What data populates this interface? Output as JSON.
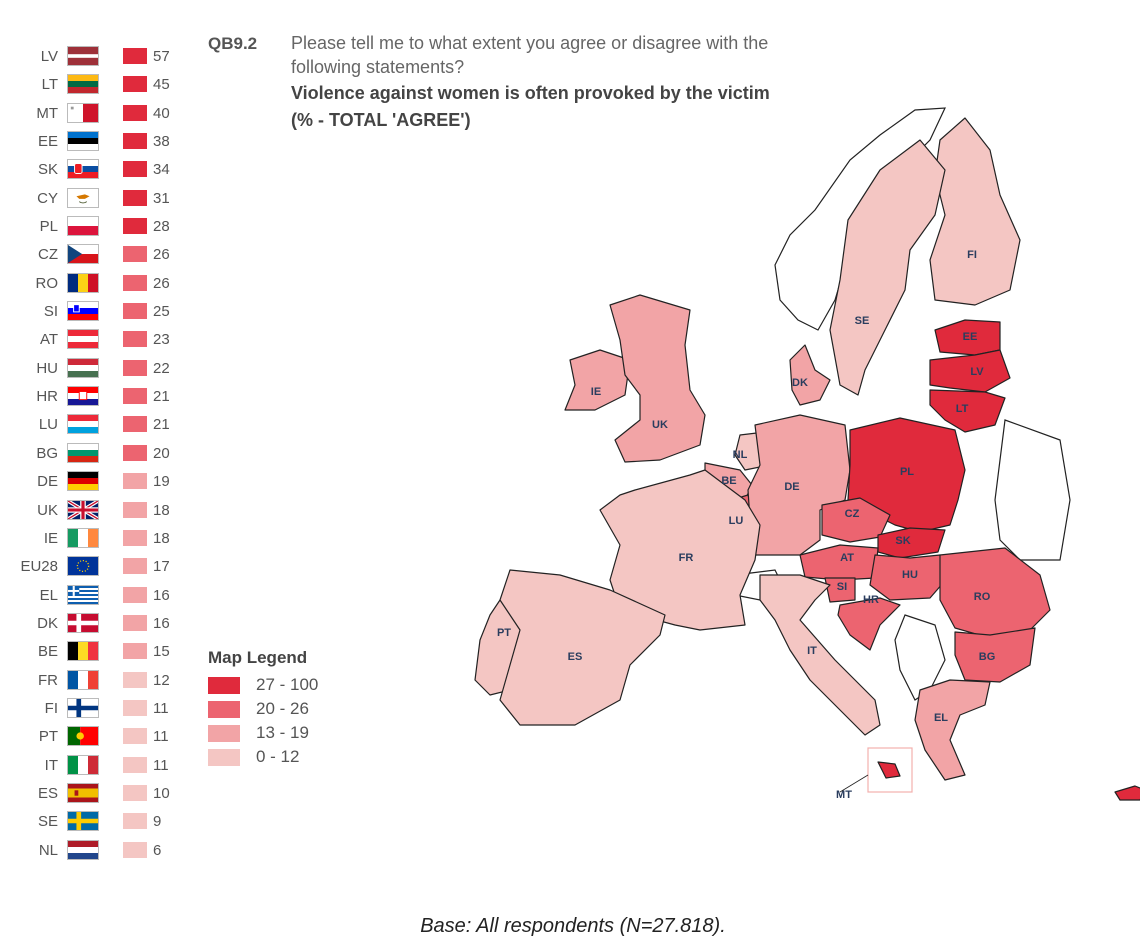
{
  "header": {
    "question_code": "QB9.2",
    "question_line1": "Please tell me to what extent you agree or disagree with the",
    "question_line2": "following statements?",
    "statement": "Violence against women is often provoked by the victim",
    "measure": "(% - TOTAL 'AGREE')"
  },
  "colors": {
    "band_27_100": "#e02a3c",
    "band_20_26": "#ec6470",
    "band_13_19": "#f2a4a6",
    "band_0_12": "#f4c6c3"
  },
  "ranking": [
    {
      "code": "LV",
      "value": "57",
      "flag": "latvia-flag",
      "color": "#e02a3c"
    },
    {
      "code": "LT",
      "value": "45",
      "flag": "lithuania-flag",
      "color": "#e02a3c"
    },
    {
      "code": "MT",
      "value": "40",
      "flag": "malta-flag",
      "color": "#e02a3c"
    },
    {
      "code": "EE",
      "value": "38",
      "flag": "estonia-flag",
      "color": "#e02a3c"
    },
    {
      "code": "SK",
      "value": "34",
      "flag": "slovakia-flag",
      "color": "#e02a3c"
    },
    {
      "code": "CY",
      "value": "31",
      "flag": "cyprus-flag",
      "color": "#e02a3c"
    },
    {
      "code": "PL",
      "value": "28",
      "flag": "poland-flag",
      "color": "#e02a3c"
    },
    {
      "code": "CZ",
      "value": "26",
      "flag": "czechia-flag",
      "color": "#ec6470"
    },
    {
      "code": "RO",
      "value": "26",
      "flag": "romania-flag",
      "color": "#ec6470"
    },
    {
      "code": "SI",
      "value": "25",
      "flag": "slovenia-flag",
      "color": "#ec6470"
    },
    {
      "code": "AT",
      "value": "23",
      "flag": "austria-flag",
      "color": "#ec6470"
    },
    {
      "code": "HU",
      "value": "22",
      "flag": "hungary-flag",
      "color": "#ec6470"
    },
    {
      "code": "HR",
      "value": "21",
      "flag": "croatia-flag",
      "color": "#ec6470"
    },
    {
      "code": "LU",
      "value": "21",
      "flag": "luxembourg-flag",
      "color": "#ec6470"
    },
    {
      "code": "BG",
      "value": "20",
      "flag": "bulgaria-flag",
      "color": "#ec6470"
    },
    {
      "code": "DE",
      "value": "19",
      "flag": "germany-flag",
      "color": "#f2a4a6"
    },
    {
      "code": "UK",
      "value": "18",
      "flag": "uk-flag",
      "color": "#f2a4a6"
    },
    {
      "code": "IE",
      "value": "18",
      "flag": "ireland-flag",
      "color": "#f2a4a6"
    },
    {
      "code": "EU28",
      "value": "17",
      "flag": "eu-flag",
      "color": "#f2a4a6"
    },
    {
      "code": "EL",
      "value": "16",
      "flag": "greece-flag",
      "color": "#f2a4a6"
    },
    {
      "code": "DK",
      "value": "16",
      "flag": "denmark-flag",
      "color": "#f2a4a6"
    },
    {
      "code": "BE",
      "value": "15",
      "flag": "belgium-flag",
      "color": "#f2a4a6"
    },
    {
      "code": "FR",
      "value": "12",
      "flag": "france-flag",
      "color": "#f4c6c3"
    },
    {
      "code": "FI",
      "value": "11",
      "flag": "finland-flag",
      "color": "#f4c6c3"
    },
    {
      "code": "PT",
      "value": "11",
      "flag": "portugal-flag",
      "color": "#f4c6c3"
    },
    {
      "code": "IT",
      "value": "11",
      "flag": "italy-flag",
      "color": "#f4c6c3"
    },
    {
      "code": "ES",
      "value": "10",
      "flag": "spain-flag",
      "color": "#f4c6c3"
    },
    {
      "code": "SE",
      "value": "9",
      "flag": "sweden-flag",
      "color": "#f4c6c3"
    },
    {
      "code": "NL",
      "value": "6",
      "flag": "netherlands-flag",
      "color": "#f4c6c3"
    }
  ],
  "legend": {
    "title": "Map Legend",
    "items": [
      {
        "label": "27 - 100",
        "color": "#e02a3c"
      },
      {
        "label": "20 - 26",
        "color": "#ec6470"
      },
      {
        "label": "13 - 19",
        "color": "#f2a4a6"
      },
      {
        "label": "0 - 12",
        "color": "#f4c6c3"
      }
    ]
  },
  "map": {
    "labels": {
      "FI": "FI",
      "SE": "SE",
      "EE": "EE",
      "LV": "LV",
      "LT": "LT",
      "DK": "DK",
      "IE": "IE",
      "UK": "UK",
      "NL": "NL",
      "BE": "BE",
      "LU": "LU",
      "DE": "DE",
      "PL": "PL",
      "CZ": "CZ",
      "SK": "SK",
      "AT": "AT",
      "HU": "HU",
      "SI": "SI",
      "HR": "HR",
      "RO": "RO",
      "BG": "BG",
      "FR": "FR",
      "PT": "PT",
      "ES": "ES",
      "IT": "IT",
      "EL": "EL",
      "MT": "MT"
    }
  },
  "footer": {
    "base_note": "Base: All respondents (N=27.818)."
  }
}
